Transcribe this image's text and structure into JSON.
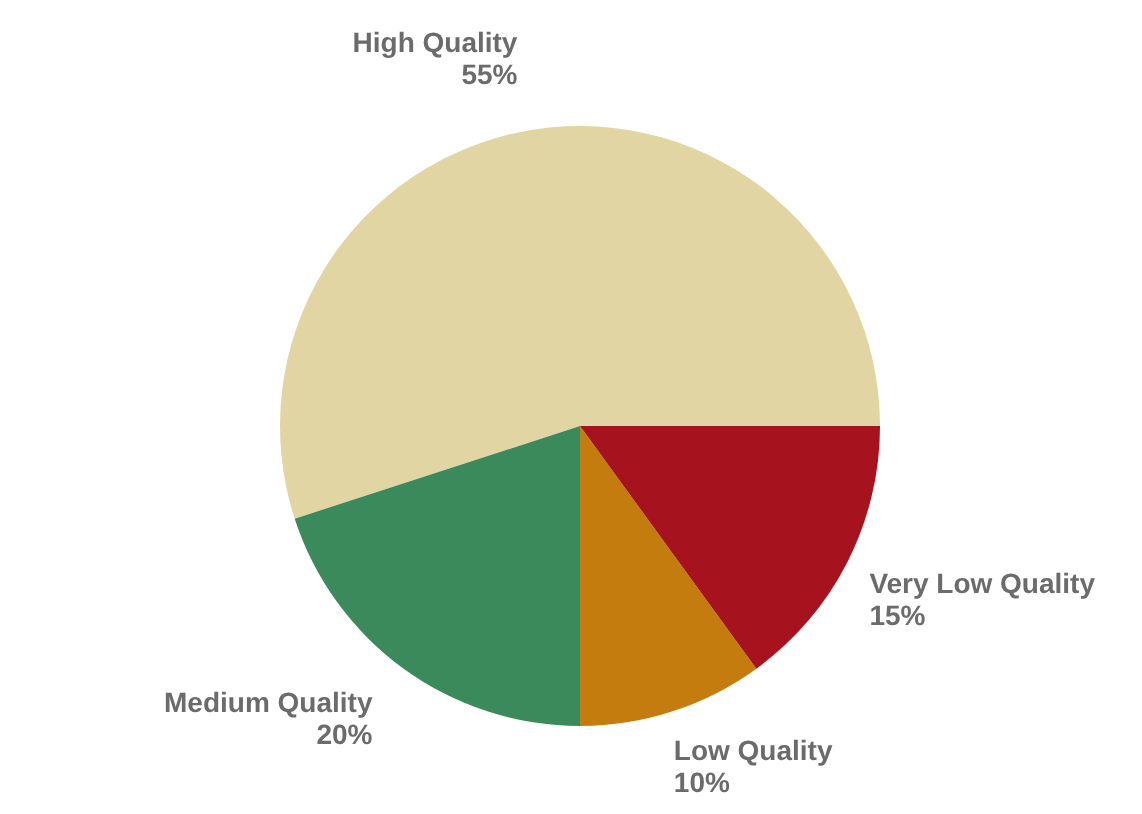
{
  "chart_data": {
    "type": "pie",
    "categories": [
      "High Quality",
      "Medium Quality",
      "Low Quality",
      "Very Low Quality"
    ],
    "values": [
      55,
      20,
      10,
      15
    ],
    "value_labels": [
      "55%",
      "20%",
      "10%",
      "15%"
    ],
    "colors": [
      "#e2d5a4",
      "#3a8a5c",
      "#c47c0f",
      "#a6121e"
    ],
    "legend": false
  }
}
